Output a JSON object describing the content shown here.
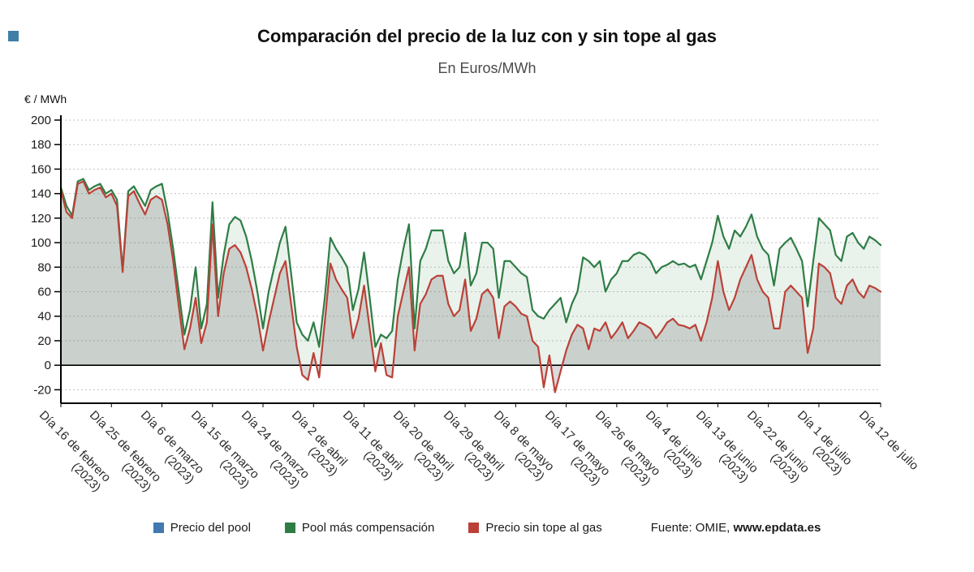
{
  "page": {
    "title": "Comparación del precio de la luz con y sin tope al gas",
    "subtitle": "En Euros/MWh",
    "y_axis_unit": "€ / MWh",
    "source_prefix": "Fuente: OMIE, ",
    "source_link": "www.epdata.es"
  },
  "legend": [
    {
      "label": "Precio del pool",
      "color": "#4279b0"
    },
    {
      "label": "Pool más compensación",
      "color": "#2e7d45"
    },
    {
      "label": "Precio sin tope al gas",
      "color": "#bb4138"
    }
  ],
  "chart_data": {
    "type": "line",
    "title": "Comparación del precio de la luz con y sin tope al gas",
    "subtitle": "En Euros/MWh",
    "ylabel": "€ / MWh",
    "xlabel": "",
    "ylim": [
      -31,
      200
    ],
    "yticks": [
      -20,
      0,
      20,
      40,
      60,
      80,
      100,
      120,
      140,
      160,
      180,
      200
    ],
    "grid": "dotted-horizontal",
    "legend_position": "bottom",
    "x_unit": "daily values, 16 Feb 2023 to 12 Jul 2023",
    "x_tick_positions": [
      0,
      9,
      18,
      27,
      36,
      45,
      54,
      63,
      72,
      81,
      90,
      99,
      108,
      117,
      126,
      135,
      146
    ],
    "x_tick_labels": [
      [
        "Día 16 de febrero",
        "(2023)"
      ],
      [
        "Día 25 de febrero",
        "(2023)"
      ],
      [
        "Día 6 de marzo",
        "(2023)"
      ],
      [
        "Día 15 de marzo",
        "(2023)"
      ],
      [
        "Día 24 de marzo",
        "(2023)"
      ],
      [
        "Día 2 de abril",
        "(2023)"
      ],
      [
        "Día 11 de abril",
        "(2023)"
      ],
      [
        "Día 20 de abril",
        "(2023)"
      ],
      [
        "Día 29 de abril",
        "(2023)"
      ],
      [
        "Día 8 de mayo",
        "(2023)"
      ],
      [
        "Día 17 de mayo",
        "(2023)"
      ],
      [
        "Día 26 de mayo",
        "(2023)"
      ],
      [
        "Día 4 de junio",
        "(2023)"
      ],
      [
        "Día 13 de junio",
        "(2023)"
      ],
      [
        "Día 22 de junio",
        "(2023)"
      ],
      [
        "Día 1 de julio",
        "(2023)"
      ],
      [
        "Día 12 de julio",
        ""
      ]
    ],
    "series": [
      {
        "name": "Precio del pool",
        "color": "#4279b0",
        "note": "not visibly distinct in chart (overlaps other series)",
        "values": []
      },
      {
        "name": "Pool más compensación",
        "color": "#2e7d45",
        "fill": "rgba(46,125,69,0.10)",
        "values": [
          145,
          130,
          122,
          150,
          152,
          143,
          146,
          148,
          140,
          143,
          135,
          78,
          142,
          146,
          138,
          130,
          143,
          146,
          148,
          125,
          95,
          60,
          25,
          45,
          80,
          30,
          50,
          133,
          55,
          90,
          115,
          121,
          118,
          105,
          85,
          60,
          30,
          60,
          80,
          100,
          113,
          75,
          35,
          25,
          20,
          35,
          15,
          55,
          104,
          95,
          88,
          80,
          45,
          62,
          92,
          55,
          15,
          25,
          22,
          28,
          70,
          95,
          115,
          30,
          85,
          95,
          110,
          110,
          110,
          85,
          75,
          80,
          108,
          65,
          75,
          100,
          100,
          95,
          55,
          85,
          85,
          80,
          75,
          72,
          45,
          40,
          38,
          45,
          50,
          55,
          35,
          50,
          60,
          88,
          85,
          80,
          85,
          60,
          70,
          75,
          85,
          85,
          90,
          92,
          90,
          85,
          75,
          80,
          82,
          85,
          82,
          83,
          80,
          82,
          70,
          85,
          100,
          122,
          105,
          95,
          110,
          105,
          113,
          123,
          105,
          95,
          90,
          65,
          95,
          100,
          104,
          95,
          85,
          48,
          85,
          120,
          115,
          110,
          90,
          85,
          105,
          108,
          100,
          95,
          105,
          102,
          98
        ]
      },
      {
        "name": "Precio sin tope al gas",
        "color": "#bb4138",
        "fill": "rgba(90,90,90,0.22)",
        "values": [
          143,
          125,
          120,
          148,
          150,
          140,
          143,
          145,
          137,
          140,
          130,
          76,
          138,
          142,
          132,
          123,
          135,
          138,
          135,
          115,
          85,
          48,
          13,
          30,
          55,
          18,
          35,
          115,
          40,
          75,
          95,
          98,
          92,
          80,
          62,
          40,
          12,
          35,
          55,
          75,
          85,
          50,
          15,
          -8,
          -12,
          10,
          -10,
          35,
          83,
          70,
          62,
          55,
          22,
          38,
          65,
          30,
          -5,
          18,
          -8,
          -10,
          40,
          60,
          80,
          12,
          50,
          58,
          70,
          73,
          73,
          50,
          40,
          45,
          70,
          28,
          38,
          58,
          62,
          55,
          22,
          48,
          52,
          48,
          42,
          40,
          20,
          15,
          -18,
          8,
          -22,
          -5,
          12,
          25,
          33,
          30,
          13,
          30,
          28,
          35,
          22,
          28,
          35,
          22,
          28,
          35,
          33,
          30,
          22,
          28,
          35,
          38,
          33,
          32,
          30,
          33,
          20,
          35,
          55,
          85,
          60,
          45,
          55,
          70,
          80,
          90,
          70,
          60,
          55,
          30,
          30,
          60,
          65,
          60,
          55,
          10,
          30,
          83,
          80,
          75,
          55,
          50,
          65,
          70,
          60,
          55,
          65,
          63,
          60
        ]
      }
    ]
  }
}
